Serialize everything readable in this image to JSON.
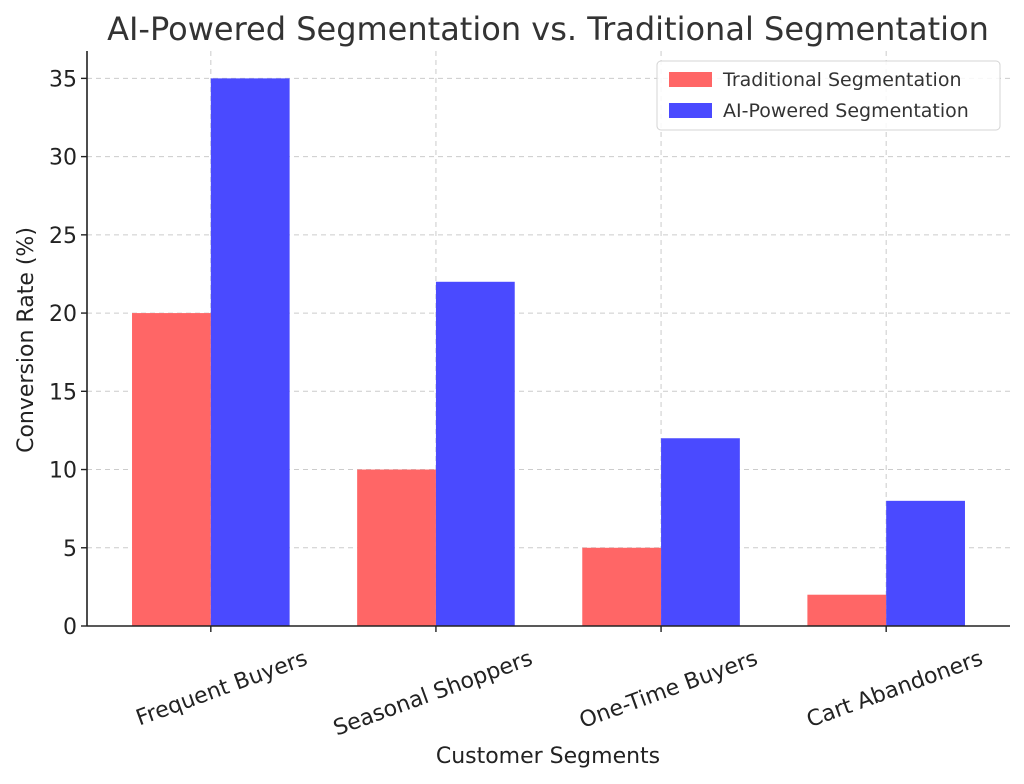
{
  "chart_data": {
    "type": "bar",
    "title": "AI-Powered Segmentation vs. Traditional Segmentation",
    "xlabel": "Customer Segments",
    "ylabel": "Conversion Rate (%)",
    "categories": [
      "Frequent Buyers",
      "Seasonal Shoppers",
      "One-Time Buyers",
      "Cart Abandoners"
    ],
    "series": [
      {
        "name": "Traditional Segmentation",
        "color": "#ff6666",
        "values": [
          20,
          10,
          5,
          2
        ]
      },
      {
        "name": "AI-Powered Segmentation",
        "color": "#4a4aff",
        "values": [
          35,
          22,
          12,
          8
        ]
      }
    ],
    "ylim": [
      0,
      36.75
    ],
    "yticks": [
      0,
      5,
      10,
      15,
      20,
      25,
      30,
      35
    ],
    "grid": true,
    "legend_position": "top-right"
  }
}
